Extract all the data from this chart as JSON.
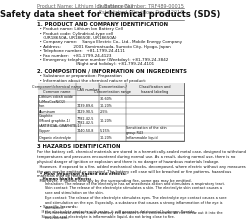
{
  "header_left": "Product Name: Lithium Ion Battery Cell",
  "header_right": "Substance Number: TRF489-00015\nEstablished / Revision: Dec.1.2016",
  "title": "Safety data sheet for chemical products (SDS)",
  "section1_title": "1. PRODUCT AND COMPANY IDENTIFICATION",
  "section1_lines": [
    "  • Product name: Lithium Ion Battery Cell",
    "  • Product code: Cylindrical-type cell",
    "     (UR18650A, UR18650E, UR18650A)",
    "  • Company name:    Sanyo Electric Co., Ltd., Mobile Energy Company",
    "  • Address:          2001 Kamimatsuda, Sumoto City, Hyogo, Japan",
    "  • Telephone number:   +81-1799-24-4111",
    "  • Fax number:   +81-1799-24-4123",
    "  • Emergency telephone number (Weekday): +81-799-24-3842",
    "                               (Night and holiday): +81-799-24-4101"
  ],
  "section2_title": "2. COMPOSITION / INFORMATION ON INGREDIENTS",
  "section2_intro": "  • Substance or preparation: Preparation",
  "section2_sub": "  • Information about the chemical nature of product:",
  "table_header_comp": "Component/chemical name",
  "table_header_comp2": "Common name",
  "table_header_cas": "CAS number",
  "table_header_conc": "Concentration /\nConcentration range",
  "table_header_class": "Classification and\nhazard labeling",
  "table_rows": [
    [
      "Lithium cobalt oxide\n(LiMnxCoxNiO2)",
      "",
      "30-60%",
      ""
    ],
    [
      "Iron",
      "7439-89-6",
      "10-20%",
      ""
    ],
    [
      "Aluminum",
      "7429-90-5",
      "2-5%",
      ""
    ],
    [
      "Graphite\n(Mixed graphite-1)\n(ARTIFICIAL GRAPHITE-1)",
      "7782-42-5\n7782-42-5",
      "10-20%",
      ""
    ],
    [
      "Copper",
      "7440-50-8",
      "5-15%",
      "Sensitization of the skin\ngroup R43"
    ],
    [
      "Organic electrolyte",
      "",
      "10-20%",
      "Inflammable liquid"
    ]
  ],
  "section3_title": "3 HAZARDS IDENTIFICATION",
  "section3_para1": "For the battery cell, chemical materials are stored in a hermetically-sealed metal case, designed to withstand\ntemperatures and pressures encountered during normal use. As a result, during normal use, there is no\nphysical danger of ignition or explosion and there is no danger of hazardous materials leakage.\n  However, if exposed to a fire, added mechanical shocks, decomposed, where electric without any measures,\nthe gas maybe emitted or operated. The battery cell case will be breached or fire patterns, hazardous\nmaterials may be released.\n  Moreover, if heated strongly by the surrounding fire, some gas may be emitted.",
  "section3_bullet1": "  • Most important hazard and effects:",
  "section3_human_hdr": "    Human health effects:",
  "section3_human_body": "       Inhalation: The release of the electrolyte has an anesthesia action and stimulates a respiratory tract.\n       Skin contact: The release of the electrolyte stimulates a skin. The electrolyte skin contact causes a\n       sore and stimulation on the skin.\n       Eye contact: The release of the electrolyte stimulates eyes. The electrolyte eye contact causes a sore\n       and stimulation on the eye. Especially, a substance that causes a strong inflammation of the eye is\n       contained.\n       Environmental effects: Since a battery cell remains in the environment, do not throw out it into the\n       environment.",
  "section3_specific": "  • Specific hazards:",
  "section3_specific_body": "    If the electrolyte contacts with water, it will generate detrimental hydrogen fluoride.\n    Since the seal electrolyte is inflammable liquid, do not bring close to fire.",
  "bg_color": "#ffffff",
  "text_color": "#111111",
  "gray_color": "#666666",
  "line_color": "#333333"
}
